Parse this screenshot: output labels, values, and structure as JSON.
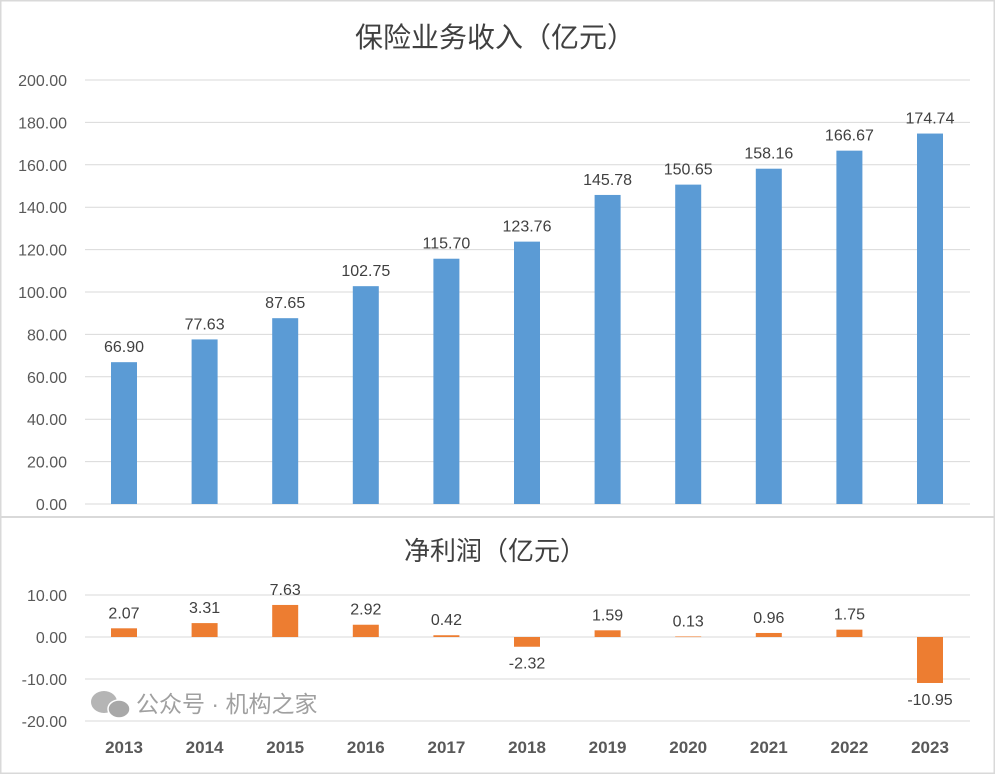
{
  "chart_data": [
    {
      "type": "bar",
      "title": "保险业务收入（亿元）",
      "categories": [
        "2013",
        "2014",
        "2015",
        "2016",
        "2017",
        "2018",
        "2019",
        "2020",
        "2021",
        "2022",
        "2023"
      ],
      "values": [
        66.9,
        77.63,
        87.65,
        102.75,
        115.7,
        123.76,
        145.78,
        150.65,
        158.16,
        166.67,
        174.74
      ],
      "data_labels": [
        "66.90",
        "77.63",
        "87.65",
        "102.75",
        "115.70",
        "123.76",
        "145.78",
        "150.65",
        "158.16",
        "166.67",
        "174.74"
      ],
      "ylim": [
        0,
        200
      ],
      "yticks": [
        "0.00",
        "20.00",
        "40.00",
        "60.00",
        "80.00",
        "100.00",
        "120.00",
        "140.00",
        "160.00",
        "180.00",
        "200.00"
      ],
      "grid": true,
      "color": "#5b9bd5"
    },
    {
      "type": "bar",
      "title": "净利润（亿元）",
      "categories": [
        "2013",
        "2014",
        "2015",
        "2016",
        "2017",
        "2018",
        "2019",
        "2020",
        "2021",
        "2022",
        "2023"
      ],
      "values": [
        2.07,
        3.31,
        7.63,
        2.92,
        0.42,
        -2.32,
        1.59,
        0.13,
        0.96,
        1.75,
        -10.95
      ],
      "data_labels": [
        "2.07",
        "3.31",
        "7.63",
        "2.92",
        "0.42",
        "-2.32",
        "1.59",
        "0.13",
        "0.96",
        "1.75",
        "-10.95"
      ],
      "ylim": [
        -20,
        10
      ],
      "yticks": [
        "-20.00",
        "-10.00",
        "0.00",
        "10.00"
      ],
      "grid": true,
      "color": "#ed7d31"
    }
  ],
  "watermark": {
    "text": "公众号 · 机构之家",
    "icon": "wechat-icon"
  }
}
